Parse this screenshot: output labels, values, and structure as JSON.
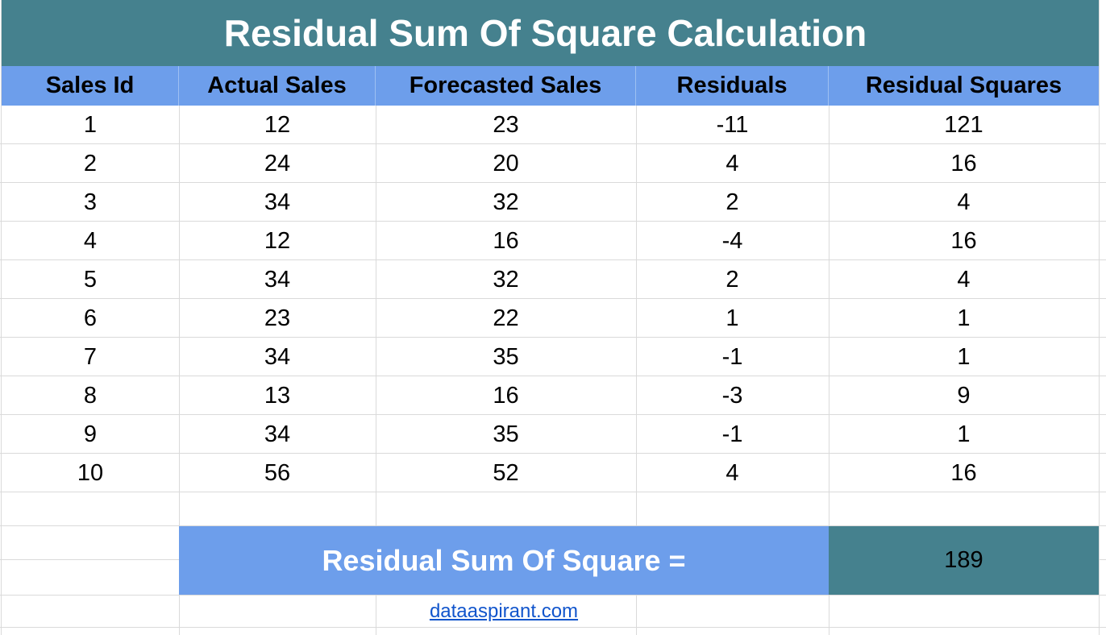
{
  "title": "Residual Sum Of Square Calculation",
  "table": {
    "columns": [
      "Sales Id",
      "Actual Sales",
      "Forecasted Sales",
      "Residuals",
      "Residual Squares"
    ],
    "rows": [
      [
        "1",
        "12",
        "23",
        "-11",
        "121"
      ],
      [
        "2",
        "24",
        "20",
        "4",
        "16"
      ],
      [
        "3",
        "34",
        "32",
        "2",
        "4"
      ],
      [
        "4",
        "12",
        "16",
        "-4",
        "16"
      ],
      [
        "5",
        "34",
        "32",
        "2",
        "4"
      ],
      [
        "6",
        "23",
        "22",
        "1",
        "1"
      ],
      [
        "7",
        "34",
        "35",
        "-1",
        "1"
      ],
      [
        "8",
        "13",
        "16",
        "-3",
        "9"
      ],
      [
        "9",
        "34",
        "35",
        "-1",
        "1"
      ],
      [
        "10",
        "56",
        "52",
        "4",
        "16"
      ]
    ]
  },
  "total": {
    "label": "Residual Sum Of Square =",
    "value": "189"
  },
  "source_link": "dataaspirant.com",
  "colors": {
    "title_bg": "#45818e",
    "header_bg": "#6d9eeb",
    "total_value_bg": "#45818e",
    "link": "#1155cc"
  }
}
